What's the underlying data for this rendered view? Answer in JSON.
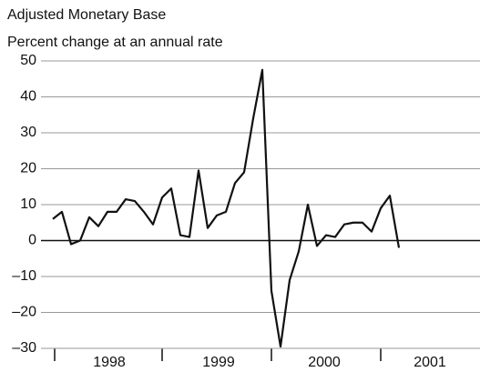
{
  "chart_data": {
    "type": "line",
    "title": "Adjusted Monetary Base",
    "subtitle": "Percent change at an annual rate",
    "year_labels": [
      "1998",
      "1999",
      "2000",
      "2001"
    ],
    "series": [
      {
        "color": "#111111",
        "values": [
          6,
          8,
          -1,
          0,
          6.5,
          4,
          8,
          8,
          11.5,
          11,
          8,
          4.5,
          12,
          14.5,
          1.5,
          1,
          19.5,
          3.5,
          7,
          8,
          16,
          19,
          34,
          47.5,
          -14,
          -29.5,
          -11,
          -3,
          10,
          -1.5,
          1.5,
          1,
          4.5,
          5,
          5,
          2.5,
          9,
          12.5,
          -2
        ]
      }
    ],
    "ylim": [
      -30,
      50
    ],
    "yticks": [
      {
        "value": -30,
        "label": "–30"
      },
      {
        "value": -20,
        "label": "–20"
      },
      {
        "value": -10,
        "label": "–10"
      },
      0,
      10,
      20,
      30,
      40,
      50
    ],
    "grid": true
  }
}
